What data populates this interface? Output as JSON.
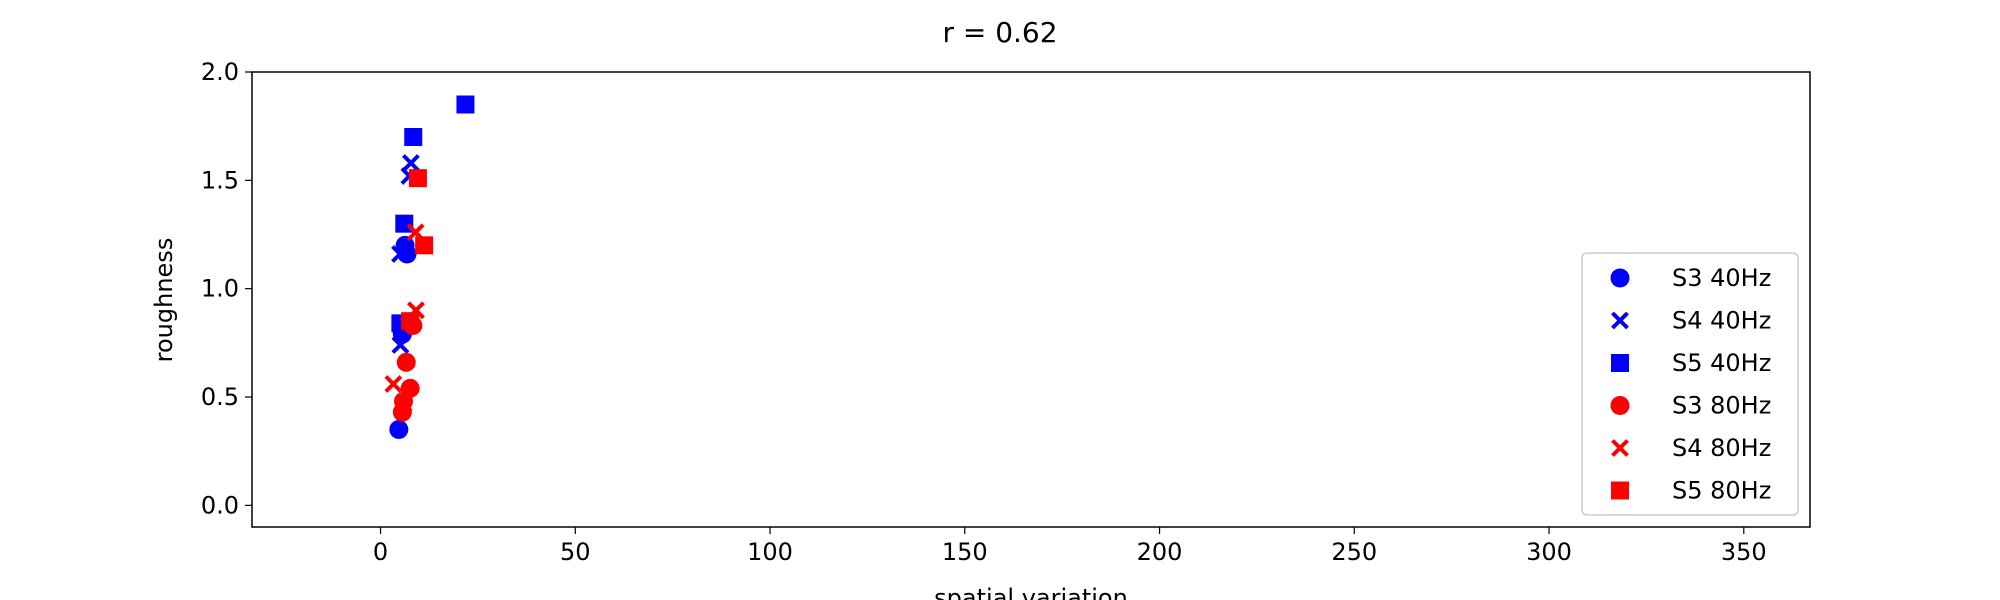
{
  "chart_data": {
    "type": "scatter",
    "title": "r = 0.62",
    "xlabel": "spatial variation",
    "ylabel": "roughness",
    "xlim": [
      -33,
      367
    ],
    "ylim": [
      -0.1,
      2.0
    ],
    "x_ticks": [
      0,
      50,
      100,
      150,
      200,
      250,
      300,
      350
    ],
    "y_ticks": [
      0.0,
      0.5,
      1.0,
      1.5,
      2.0
    ],
    "x_tick_labels": [
      "0",
      "50",
      "100",
      "150",
      "200",
      "250",
      "300",
      "350"
    ],
    "y_tick_labels": [
      "0.0",
      "0.5",
      "1.0",
      "1.5",
      "2.0"
    ],
    "grid": false,
    "legend_position": "lower-right",
    "series": [
      {
        "name": "S3 40Hz",
        "color": "#0000ff",
        "marker": "circle",
        "points": [
          [
            4.7,
            0.35
          ],
          [
            6.3,
            1.2
          ],
          [
            6.8,
            1.16
          ],
          [
            5.6,
            0.79
          ]
        ]
      },
      {
        "name": "S4 40Hz",
        "color": "#0000ff",
        "marker": "x",
        "points": [
          [
            7.8,
            1.58
          ],
          [
            7.4,
            1.52
          ],
          [
            5.0,
            1.16
          ],
          [
            5.1,
            0.74
          ]
        ]
      },
      {
        "name": "S5 40Hz",
        "color": "#0000ff",
        "marker": "square",
        "points": [
          [
            21.8,
            1.85
          ],
          [
            8.4,
            1.7
          ],
          [
            6.1,
            1.3
          ],
          [
            5.1,
            0.84
          ]
        ]
      },
      {
        "name": "S3 80Hz",
        "color": "#ff0000",
        "marker": "circle",
        "points": [
          [
            6.6,
            0.66
          ],
          [
            7.6,
            0.54
          ],
          [
            5.9,
            0.48
          ],
          [
            5.6,
            0.43
          ],
          [
            8.3,
            0.83
          ]
        ]
      },
      {
        "name": "S4 80Hz",
        "color": "#ff0000",
        "marker": "x",
        "points": [
          [
            9.1,
            0.9
          ],
          [
            9.0,
            1.26
          ],
          [
            3.3,
            0.56
          ],
          [
            5.9,
            0.47
          ]
        ]
      },
      {
        "name": "S5 80Hz",
        "color": "#ff0000",
        "marker": "square",
        "points": [
          [
            9.6,
            1.51
          ],
          [
            11.2,
            1.2
          ],
          [
            7.6,
            0.85
          ]
        ]
      }
    ]
  }
}
